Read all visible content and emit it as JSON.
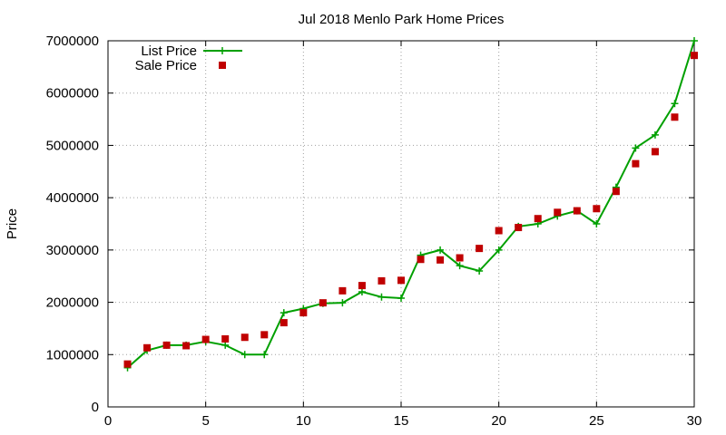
{
  "chart_data": {
    "type": "line",
    "title": "Jul 2018 Menlo Park Home Prices",
    "xlabel": "",
    "ylabel": "Price",
    "xlim": [
      0,
      30
    ],
    "ylim": [
      0,
      7000000
    ],
    "x_ticks": [
      0,
      5,
      10,
      15,
      20,
      25,
      30
    ],
    "y_ticks": [
      0,
      1000000,
      2000000,
      3000000,
      4000000,
      5000000,
      6000000,
      7000000
    ],
    "grid": true,
    "legend_position": "top-left",
    "x": [
      1,
      2,
      3,
      4,
      5,
      6,
      7,
      8,
      9,
      10,
      11,
      12,
      13,
      14,
      15,
      16,
      17,
      18,
      19,
      20,
      21,
      22,
      23,
      24,
      25,
      26,
      27,
      28,
      29,
      30
    ],
    "series": [
      {
        "name": "List Price",
        "style": "line-plus",
        "color": "#00a000",
        "values": [
          750000,
          1080000,
          1180000,
          1180000,
          1250000,
          1180000,
          1000000,
          1000000,
          1800000,
          1880000,
          1980000,
          1990000,
          2200000,
          2100000,
          2080000,
          2900000,
          3000000,
          2700000,
          2600000,
          3000000,
          3450000,
          3500000,
          3650000,
          3750000,
          3500000,
          4200000,
          4950000,
          5200000,
          5800000,
          7000000
        ]
      },
      {
        "name": "Sale Price",
        "style": "square-markers",
        "color": "#c00000",
        "values": [
          820000,
          1130000,
          1180000,
          1170000,
          1290000,
          1300000,
          1330000,
          1380000,
          1610000,
          1800000,
          1990000,
          2220000,
          2320000,
          2410000,
          2420000,
          2820000,
          2810000,
          2850000,
          3030000,
          3370000,
          3430000,
          3600000,
          3720000,
          3750000,
          3790000,
          4120000,
          4650000,
          4880000,
          5540000,
          6720000
        ]
      }
    ]
  }
}
